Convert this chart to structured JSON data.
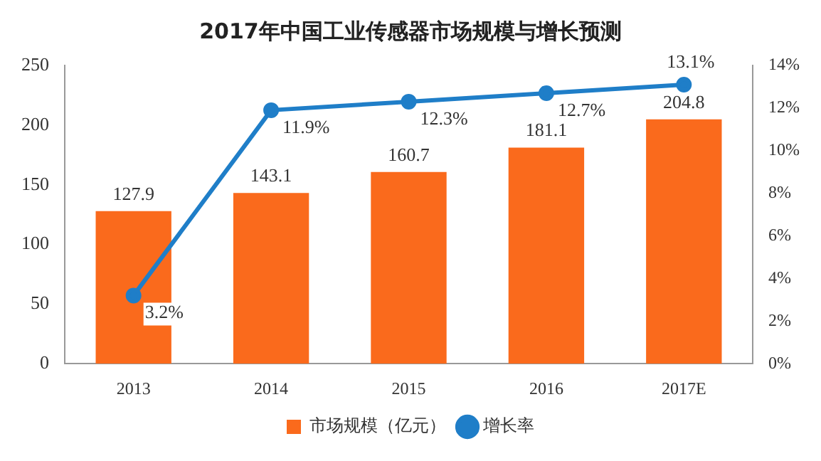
{
  "chart_data": {
    "type": "bar",
    "title": "2017年中国工业传感器市场规模与增长预测",
    "categories": [
      "2013",
      "2014",
      "2015",
      "2016",
      "2017E"
    ],
    "series": [
      {
        "name": "市场规模（亿元）",
        "color": "#fa6a1c",
        "values": [
          127.9,
          143.1,
          160.7,
          181.1,
          204.8
        ],
        "value_labels": [
          "127.9",
          "143.1",
          "160.7",
          "181.1",
          "204.8"
        ]
      },
      {
        "name": "增长率",
        "type": "line",
        "axis": "y2",
        "color": "#1f7ec8",
        "values": [
          3.2,
          11.9,
          12.3,
          12.7,
          13.1
        ],
        "value_labels": [
          "3.2%",
          "11.9%",
          "12.3%",
          "12.7%",
          "13.1%"
        ]
      }
    ],
    "ylim": [
      0,
      250
    ],
    "yticks": [
      0,
      50,
      100,
      150,
      200,
      250
    ],
    "y2lim": [
      0,
      14
    ],
    "y2ticks": [
      {
        "value": 0,
        "label": "0%"
      },
      {
        "value": 2,
        "label": "2%"
      },
      {
        "value": 4,
        "label": "4%"
      },
      {
        "value": 6,
        "label": "6%"
      },
      {
        "value": 8,
        "label": "8%"
      },
      {
        "value": 10,
        "label": "10%"
      },
      {
        "value": 12,
        "label": "12%"
      },
      {
        "value": 14,
        "label": "14%"
      }
    ],
    "legend": "bottom",
    "marker": "circle",
    "grid": false
  }
}
